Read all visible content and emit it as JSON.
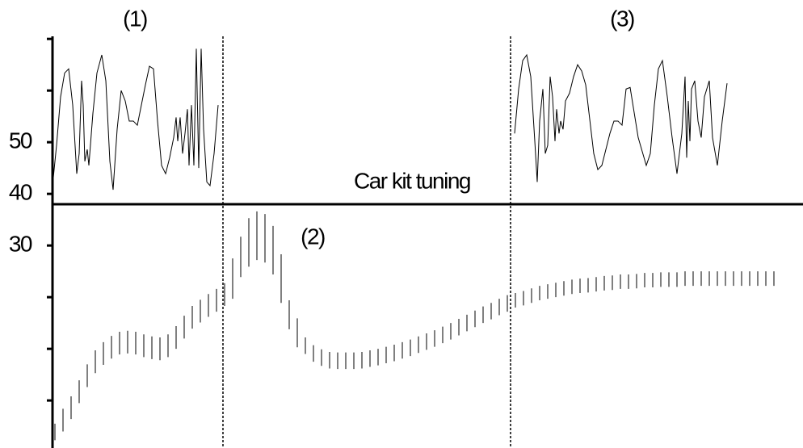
{
  "chart_data": {
    "type": "line",
    "color": "#000000",
    "xlim": [
      65,
      994
    ],
    "ylim": [
      -9.2,
      70.5
    ],
    "yticks": [
      {
        "value": 0,
        "label": null
      },
      {
        "value": 10,
        "label": null
      },
      {
        "value": 20,
        "label": null
      },
      30,
      40,
      50,
      {
        "value": 60,
        "label": null
      },
      {
        "value": 70,
        "label": null
      }
    ],
    "hline": 38.0,
    "vlines": [
      276,
      632
    ],
    "annotations": [
      "(1)",
      "(2)",
      "(3)",
      "Car kit tuning"
    ],
    "lines": [
      {
        "x": [
          65,
          70,
          75,
          80,
          85,
          90,
          95,
          98,
          101,
          103,
          105,
          108,
          110,
          115,
          120,
          126,
          131,
          136,
          140,
          145,
          150,
          155,
          160,
          165,
          170,
          175,
          180,
          185,
          190,
          195,
          200,
          205,
          210,
          215,
          218,
          220,
          223,
          226,
          229,
          232,
          234,
          237,
          240,
          243,
          246,
          249,
          252,
          256,
          260,
          265,
          270
        ],
        "values": [
          41.6,
          49.4,
          58.8,
          63.4,
          64.2,
          57.2,
          43.9,
          47.8,
          61.9,
          57.2,
          46.3,
          48.6,
          45.5,
          55.6,
          63.4,
          66.9,
          61.9,
          46.3,
          40.8,
          52.5,
          60.0,
          58.0,
          54.1,
          54.1,
          53.3,
          57.2,
          61.1,
          64.7,
          64.2,
          54.1,
          45.5,
          43.9,
          47.0,
          50.9,
          54.8,
          50.2,
          54.8,
          47.8,
          51.7,
          56.4,
          45.5,
          57.2,
          45.5,
          68.1,
          45.0,
          68.1,
          52.5,
          42.3,
          41.6,
          47.8,
          57.2
        ]
      },
      {
        "x": [
          637,
          642,
          647,
          652,
          657,
          662,
          665,
          668,
          672,
          675,
          678,
          681,
          684,
          687,
          689,
          692,
          694,
          697,
          700,
          705,
          710,
          715,
          720,
          725,
          735,
          740,
          745,
          755,
          760,
          765,
          770,
          775,
          780,
          790,
          800,
          805,
          810,
          815,
          820,
          826,
          832,
          838,
          844,
          848,
          850,
          852,
          854,
          856,
          860,
          864,
          868,
          872,
          878,
          882,
          888,
          894,
          900
        ],
        "values": [
          51.7,
          60.3,
          65.8,
          66.9,
          62.7,
          50.2,
          42.3,
          54.1,
          60.3,
          47.8,
          49.4,
          62.7,
          58.8,
          50.2,
          56.4,
          51.7,
          54.1,
          52.5,
          58.0,
          59.5,
          62.7,
          65.0,
          63.8,
          61.1,
          47.8,
          44.7,
          45.5,
          51.7,
          54.1,
          54.1,
          53.3,
          60.3,
          60.6,
          50.9,
          45.5,
          47.8,
          57.2,
          64.2,
          65.8,
          58.8,
          50.9,
          43.9,
          51.7,
          62.7,
          47.0,
          58.0,
          50.2,
          60.3,
          61.9,
          54.1,
          50.9,
          58.8,
          61.9,
          50.9,
          45.5,
          54.1,
          61.4
        ]
      }
    ],
    "ranges": {
      "x": [
        68,
        78,
        88,
        98,
        108,
        118,
        128,
        138,
        148,
        158,
        168,
        178,
        188,
        198,
        208,
        218,
        228,
        238,
        248,
        258,
        268,
        278,
        288,
        298,
        308,
        318,
        328,
        338,
        348,
        358,
        368,
        378,
        388,
        398,
        408,
        418,
        428,
        438,
        448,
        458,
        468,
        478,
        488,
        498,
        508,
        518,
        528,
        538,
        548,
        558,
        568,
        578,
        588,
        598,
        608,
        618,
        628,
        638,
        648,
        658,
        668,
        678,
        688,
        698,
        708,
        718,
        728,
        738,
        748,
        758,
        768,
        778,
        788,
        798,
        808,
        818,
        828,
        838,
        848,
        858,
        868,
        878,
        888,
        898,
        908,
        918,
        928,
        938,
        948,
        958
      ],
      "low": [
        -7.7,
        -6.0,
        -3.6,
        -0.5,
        2.6,
        5.3,
        6.9,
        8.1,
        8.9,
        9.1,
        8.9,
        8.4,
        8.0,
        7.8,
        8.4,
        10.0,
        12.0,
        13.9,
        15.1,
        16.2,
        17.2,
        18.3,
        19.7,
        23.9,
        25.9,
        27.2,
        26.7,
        24.4,
        18.9,
        13.8,
        10.3,
        9.0,
        7.5,
        6.7,
        6.2,
        6.1,
        6.1,
        6.1,
        6.2,
        6.5,
        6.8,
        7.2,
        7.6,
        8.1,
        8.6,
        9.2,
        9.8,
        10.4,
        11.1,
        11.8,
        12.6,
        13.4,
        14.2,
        15.0,
        15.7,
        16.5,
        17.2,
        18.0,
        18.4,
        18.9,
        19.4,
        19.7,
        20.0,
        20.3,
        20.6,
        20.8,
        20.9,
        21.1,
        21.3,
        21.4,
        21.6,
        21.6,
        21.7,
        21.9,
        21.9,
        22.0,
        22.0,
        22.0,
        22.2,
        22.2,
        22.2,
        22.2,
        22.2,
        22.2,
        22.2,
        22.2,
        22.2,
        22.2,
        22.2,
        22.2
      ],
      "high": [
        -4.5,
        -1.6,
        0.8,
        3.9,
        7.0,
        9.7,
        11.3,
        12.5,
        13.3,
        13.5,
        13.3,
        12.8,
        12.4,
        12.2,
        12.8,
        14.4,
        16.4,
        18.3,
        19.5,
        20.6,
        21.6,
        22.7,
        27.5,
        31.7,
        35.3,
        36.6,
        36.1,
        33.8,
        28.3,
        19.4,
        15.9,
        12.2,
        10.7,
        9.9,
        9.4,
        9.3,
        9.3,
        9.3,
        9.4,
        9.7,
        10.0,
        10.4,
        10.8,
        11.3,
        11.8,
        12.4,
        13.0,
        13.6,
        14.3,
        15.0,
        15.8,
        16.6,
        17.4,
        18.2,
        18.9,
        19.7,
        20.4,
        20.8,
        21.2,
        21.7,
        22.2,
        22.5,
        22.8,
        23.1,
        23.4,
        23.6,
        23.7,
        23.9,
        24.1,
        24.2,
        24.4,
        24.4,
        24.5,
        24.7,
        24.7,
        24.8,
        24.8,
        24.8,
        25.0,
        25.0,
        25.0,
        25.0,
        25.0,
        25.0,
        25.0,
        25.0,
        25.0,
        25.0,
        25.0,
        25.0
      ]
    }
  }
}
